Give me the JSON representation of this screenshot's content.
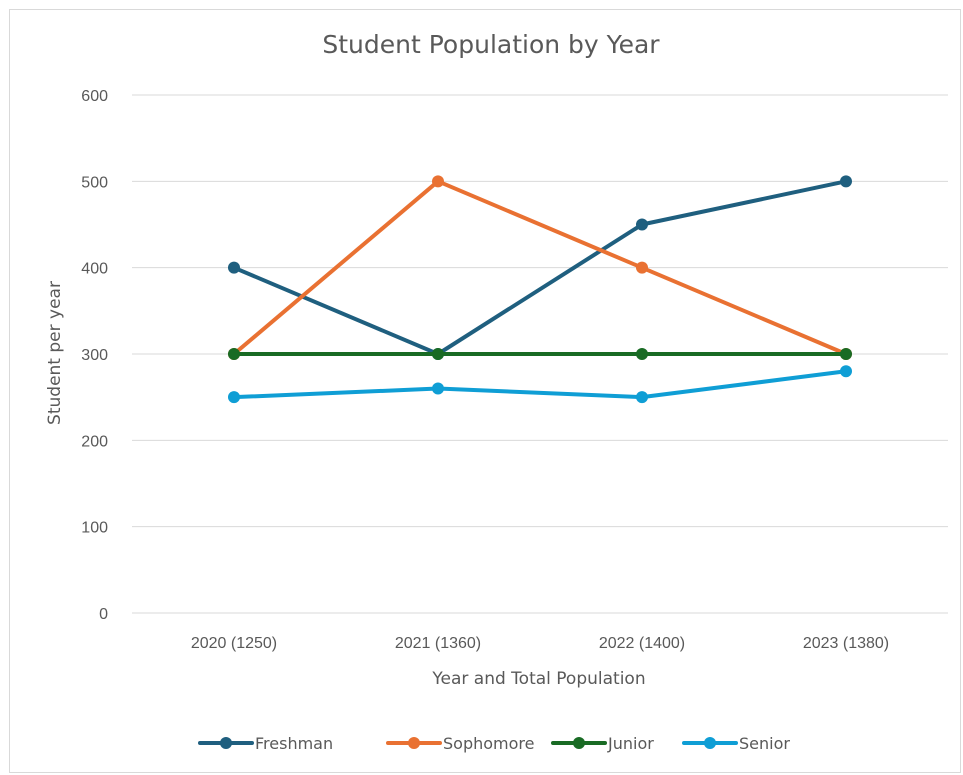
{
  "chart_data": {
    "type": "line",
    "title": "Student Population by Year",
    "xlabel": "Year and Total Population",
    "ylabel": "Student per year",
    "categories": [
      "2020 (1250)",
      "2021 (1360)",
      "2022 (1400)",
      "2023 (1380)"
    ],
    "ylim": [
      0,
      600
    ],
    "yticks": [
      0,
      100,
      200,
      300,
      400,
      500,
      600
    ],
    "grid": true,
    "legend_position": "bottom",
    "series": [
      {
        "name": "Freshman",
        "values": [
          400,
          300,
          450,
          500
        ],
        "color": "#1f5f7f"
      },
      {
        "name": "Sophomore",
        "values": [
          300,
          500,
          400,
          300
        ],
        "color": "#e97132"
      },
      {
        "name": "Junior",
        "values": [
          300,
          300,
          300,
          300
        ],
        "color": "#196b24"
      },
      {
        "name": "Senior",
        "values": [
          250,
          260,
          250,
          280
        ],
        "color": "#0f9ed5"
      }
    ]
  }
}
